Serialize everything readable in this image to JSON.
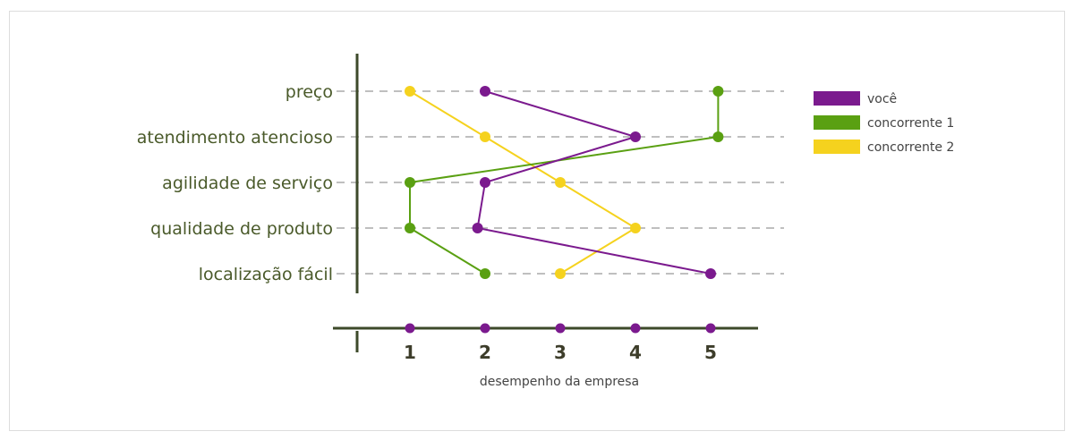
{
  "chart_data": {
    "type": "line",
    "orientation": "horizontal",
    "categories": [
      "preço",
      "atendimento atencioso",
      "agilidade de serviço",
      "qualidade de produto",
      "localização fácil"
    ],
    "x_ticks": [
      1,
      2,
      3,
      4,
      5
    ],
    "xlabel": "desempenho da empresa",
    "xlim": [
      0.5,
      5.6
    ],
    "grid": "horizontal dashed",
    "legend_position": "right",
    "series": [
      {
        "name": "você",
        "color": "#7b1a8e",
        "values": [
          2,
          4,
          2,
          1.9,
          5
        ]
      },
      {
        "name": "concorrente 1",
        "color": "#5aa012",
        "values": [
          5.1,
          5.1,
          1,
          1,
          2
        ]
      },
      {
        "name": "concorrente 2",
        "color": "#f5d21e",
        "values": [
          1,
          2,
          3,
          4,
          3
        ]
      }
    ],
    "axis_markers": {
      "color": "#7b1a8e",
      "values": [
        1,
        2,
        3,
        4,
        5
      ]
    }
  }
}
